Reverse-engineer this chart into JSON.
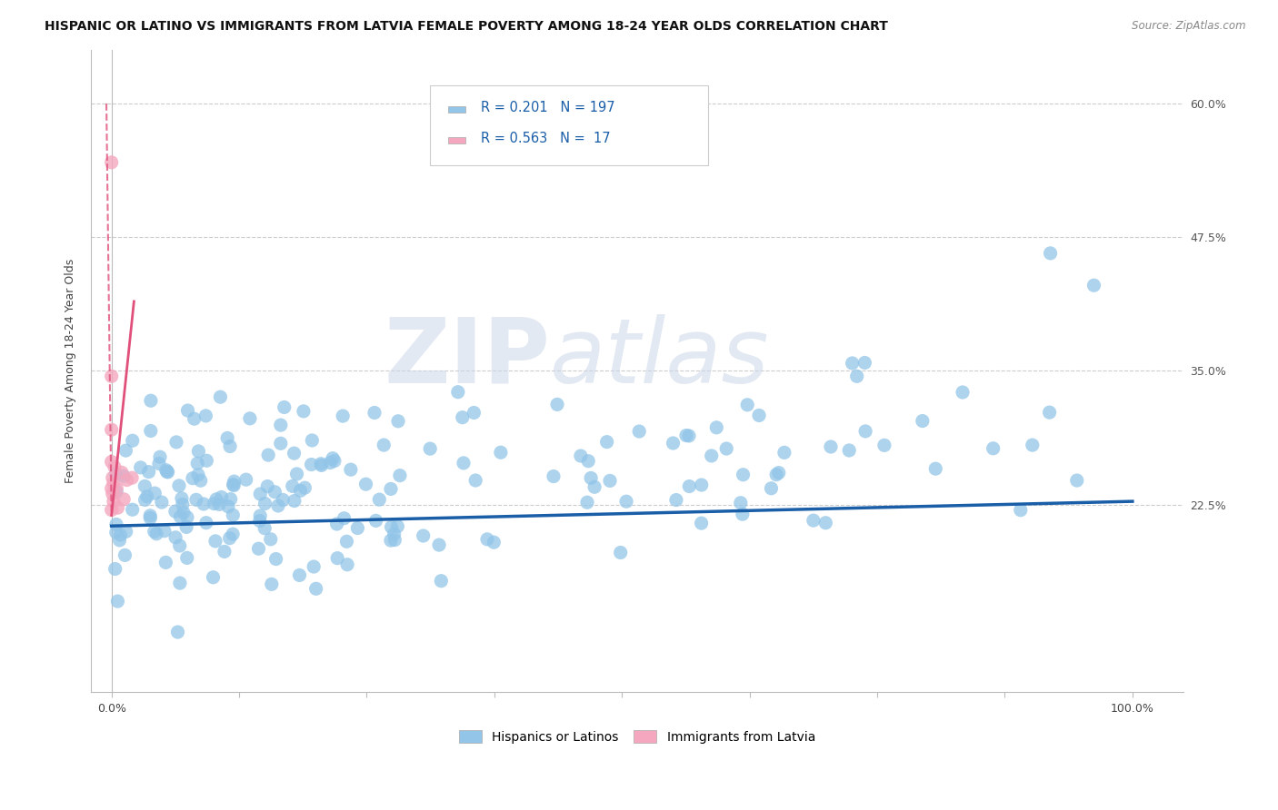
{
  "title": "HISPANIC OR LATINO VS IMMIGRANTS FROM LATVIA FEMALE POVERTY AMONG 18-24 YEAR OLDS CORRELATION CHART",
  "source": "Source: ZipAtlas.com",
  "ylabel": "Female Poverty Among 18-24 Year Olds",
  "xlim": [
    -0.02,
    1.05
  ],
  "ylim": [
    0.05,
    0.65
  ],
  "ytick_positions": [
    0.225,
    0.35,
    0.475,
    0.6
  ],
  "yticklabels": [
    "22.5%",
    "35.0%",
    "47.5%",
    "60.0%"
  ],
  "r_blue": 0.201,
  "n_blue": 197,
  "r_pink": 0.563,
  "n_pink": 17,
  "legend_labels": [
    "Hispanics or Latinos",
    "Immigrants from Latvia"
  ],
  "blue_color": "#92C5E8",
  "pink_color": "#F4A7BE",
  "trend_blue": "#1A5EA8",
  "trend_pink": "#E0507A",
  "watermark_zip": "ZIP",
  "watermark_atlas": "atlas",
  "title_fontsize": 10.5,
  "source_fontsize": 9
}
